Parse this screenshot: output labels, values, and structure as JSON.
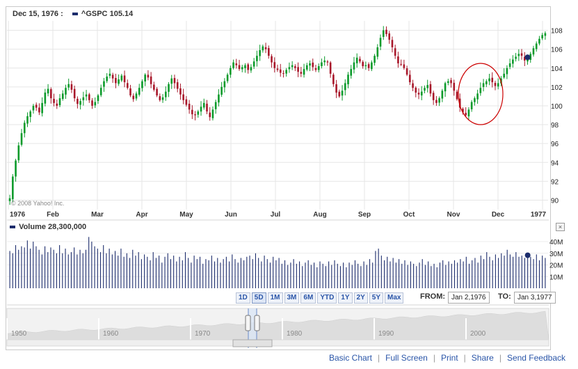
{
  "header": {
    "date": "Dec 15, 1976 :",
    "symbol": "^GSPC",
    "value": "105.14",
    "copyright": "© 2008 Yahoo! Inc."
  },
  "volume": {
    "label": "Volume",
    "value": "28,300,000",
    "close": "×"
  },
  "range_buttons": [
    "1D",
    "5D",
    "1M",
    "3M",
    "6M",
    "YTD",
    "1Y",
    "2Y",
    "5Y",
    "Max"
  ],
  "range_selected": "5D",
  "from_label": "FROM:",
  "from_value": "Jan 2,1976",
  "to_label": "TO:",
  "to_value": "Jan 3,1977",
  "navigator_years": [
    "1950",
    "1960",
    "1970",
    "1980",
    "1990",
    "2000"
  ],
  "footer_links": [
    "Basic Chart",
    "Full Screen",
    "Print",
    "Share",
    "Send Feedback"
  ],
  "colors": {
    "up": "#0a9a2a",
    "down": "#a8172a",
    "volume": "#1c2c6c",
    "highlight_circle": "#cc0000"
  },
  "chart_data": [
    {
      "type": "line",
      "title": "^GSPC",
      "x_tick_labels": [
        "1976",
        "Feb",
        "Mar",
        "Apr",
        "May",
        "Jun",
        "Jul",
        "Aug",
        "Sep",
        "Oct",
        "Nov",
        "Dec",
        "1977"
      ],
      "y_tick_labels": [
        "90",
        "92",
        "94",
        "96",
        "98",
        "100",
        "102",
        "104",
        "106",
        "108"
      ],
      "ylim": [
        89,
        109
      ],
      "grid": true,
      "marker": {
        "date": "Dec 15, 1976",
        "value": 105.14
      },
      "annotation": {
        "shape": "circle",
        "x_start": "Nov 1976",
        "x_end": "Dec 1976",
        "y_range": [
          98.5,
          102.5
        ]
      },
      "series": [
        {
          "values": [
            90.2,
            92.5,
            94.2,
            95.8,
            97.1,
            98.2,
            98.9,
            99.4,
            100.0,
            99.8,
            99.3,
            100.3,
            101.4,
            101.8,
            100.8,
            100.3,
            100.0,
            100.8,
            101.3,
            101.9,
            102.3,
            101.7,
            100.8,
            100.2,
            100.5,
            100.9,
            101.2,
            100.6,
            100.0,
            100.4,
            101.1,
            101.9,
            102.6,
            103.1,
            103.4,
            102.9,
            102.4,
            102.8,
            103.2,
            102.5,
            101.9,
            101.1,
            100.7,
            101.3,
            101.9,
            102.6,
            103.3,
            103.0,
            102.3,
            101.7,
            101.1,
            100.6,
            100.9,
            101.5,
            102.3,
            102.9,
            102.4,
            101.8,
            101.2,
            100.6,
            100.1,
            99.6,
            99.1,
            99.0,
            99.4,
            99.9,
            100.3,
            99.4,
            98.8,
            99.6,
            100.4,
            101.2,
            102.0,
            102.6,
            103.3,
            104.0,
            104.6,
            104.3,
            103.9,
            104.1,
            104.3,
            103.8,
            104.1,
            104.7,
            105.3,
            105.9,
            106.3,
            106.0,
            105.3,
            104.6,
            104.0,
            103.8,
            103.5,
            103.4,
            103.8,
            104.1,
            104.3,
            104.0,
            103.6,
            103.4,
            103.9,
            104.3,
            104.5,
            104.1,
            103.8,
            104.2,
            104.6,
            104.8,
            104.6,
            103.4,
            102.3,
            101.4,
            101.0,
            101.6,
            102.4,
            103.3,
            103.9,
            104.6,
            105.1,
            104.7,
            104.2,
            104.3,
            104.0,
            104.6,
            105.3,
            106.2,
            107.2,
            108.0,
            107.6,
            107.0,
            106.2,
            105.3,
            104.5,
            104.4,
            104.0,
            103.3,
            102.5,
            101.9,
            101.4,
            101.2,
            101.5,
            101.9,
            102.2,
            101.3,
            100.6,
            100.3,
            100.8,
            101.6,
            102.4,
            102.6,
            102.4,
            101.6,
            100.7,
            99.8,
            99.3,
            99.0,
            99.6,
            100.4,
            100.8,
            101.3,
            101.9,
            102.4,
            102.6,
            102.9,
            102.5,
            102.1,
            102.4,
            102.9,
            103.4,
            104.0,
            104.5,
            104.9,
            105.2,
            105.5,
            105.3,
            104.8,
            104.9,
            105.5,
            106.1,
            106.6,
            107.1,
            107.5,
            107.7
          ]
        }
      ]
    },
    {
      "type": "bar",
      "title": "Volume",
      "y_tick_labels": [
        "10M",
        "20M",
        "30M",
        "40M"
      ],
      "ylim": [
        0,
        46
      ],
      "marker": {
        "date": "Dec 15, 1976",
        "value": 28.3
      },
      "series": [
        {
          "name": "Volume",
          "values": [
            32,
            30,
            37,
            33,
            36,
            35,
            41,
            34,
            40,
            36,
            33,
            29,
            36,
            31,
            35,
            33,
            30,
            37,
            30,
            34,
            29,
            31,
            35,
            29,
            33,
            30,
            33,
            44,
            40,
            36,
            34,
            31,
            37,
            30,
            34,
            29,
            32,
            28,
            34,
            27,
            30,
            26,
            33,
            28,
            31,
            25,
            29,
            27,
            24,
            31,
            26,
            28,
            22,
            27,
            30,
            25,
            28,
            23,
            27,
            24,
            31,
            26,
            22,
            28,
            25,
            27,
            21,
            25,
            24,
            28,
            23,
            26,
            22,
            25,
            27,
            23,
            29,
            25,
            22,
            26,
            24,
            27,
            28,
            25,
            30,
            26,
            23,
            28,
            25,
            22,
            27,
            24,
            26,
            21,
            24,
            20,
            22,
            25,
            21,
            23,
            19,
            22,
            24,
            20,
            22,
            18,
            23,
            21,
            19,
            23,
            20,
            24,
            21,
            19,
            22,
            18,
            22,
            20,
            24,
            21,
            19,
            23,
            20,
            25,
            22,
            32,
            34,
            28,
            24,
            27,
            23,
            26,
            22,
            25,
            21,
            24,
            20,
            23,
            21,
            19,
            22,
            25,
            20,
            23,
            19,
            21,
            18,
            22,
            24,
            20,
            23,
            21,
            24,
            22,
            25,
            23,
            27,
            21,
            24,
            26,
            22,
            28,
            25,
            31,
            27,
            24,
            29,
            26,
            30,
            28,
            33,
            29,
            27,
            31,
            27,
            28,
            26,
            30,
            27,
            25,
            29,
            24,
            28,
            26
          ]
        }
      ]
    }
  ]
}
